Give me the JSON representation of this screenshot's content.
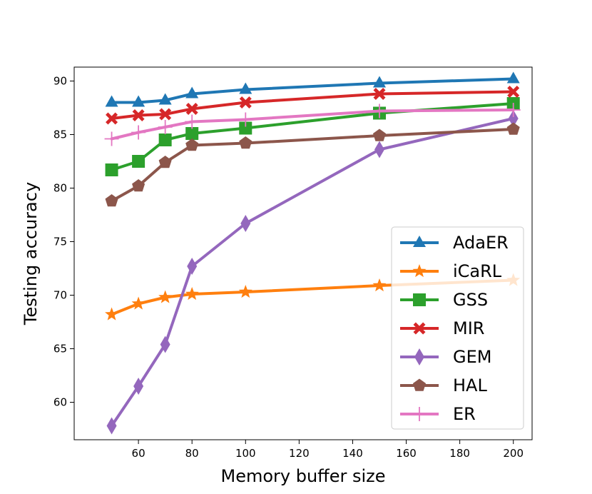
{
  "chart_data": {
    "type": "line",
    "title": "",
    "xlabel": "Memory buffer size",
    "ylabel": "Testing accuracy",
    "xlim": [
      36,
      207
    ],
    "ylim": [
      56.5,
      91.3
    ],
    "xticks": [
      60,
      80,
      100,
      120,
      140,
      160,
      180,
      200
    ],
    "yticks": [
      60,
      65,
      70,
      75,
      80,
      85,
      90
    ],
    "legend_position": "lower-right",
    "x": [
      50,
      60,
      70,
      80,
      100,
      150,
      200
    ],
    "series": [
      {
        "name": "AdaER",
        "color": "#1f77b4",
        "marker": "triangle",
        "values": [
          88.0,
          88.0,
          88.2,
          88.8,
          89.2,
          89.8,
          90.2
        ]
      },
      {
        "name": "iCaRL",
        "color": "#ff7f0e",
        "marker": "star",
        "values": [
          68.2,
          69.2,
          69.8,
          70.1,
          70.3,
          70.9,
          71.4
        ]
      },
      {
        "name": "GSS",
        "color": "#2ca02c",
        "marker": "square",
        "values": [
          81.7,
          82.5,
          84.5,
          85.1,
          85.6,
          87.0,
          87.9
        ]
      },
      {
        "name": "MIR",
        "color": "#d62728",
        "marker": "x",
        "values": [
          86.5,
          86.8,
          86.9,
          87.4,
          88.0,
          88.8,
          89.0
        ]
      },
      {
        "name": "GEM",
        "color": "#9467bd",
        "marker": "diamond",
        "values": [
          57.8,
          61.5,
          65.4,
          72.7,
          76.7,
          83.6,
          86.5
        ]
      },
      {
        "name": "HAL",
        "color": "#8c564b",
        "marker": "pentagon",
        "values": [
          78.8,
          80.2,
          82.4,
          84.0,
          84.2,
          84.9,
          85.5
        ]
      },
      {
        "name": "ER",
        "color": "#e377c2",
        "marker": "plus",
        "values": [
          84.6,
          85.2,
          85.7,
          86.2,
          86.4,
          87.2,
          87.3
        ]
      }
    ]
  }
}
